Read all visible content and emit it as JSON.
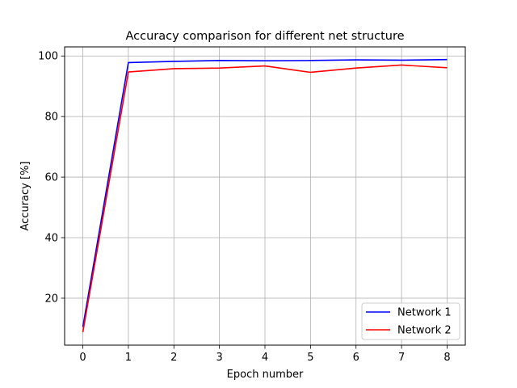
{
  "chart_data": {
    "type": "line",
    "title": "Accuracy comparison for different net structure",
    "xlabel": "Epoch number",
    "ylabel": "Accuracy [%]",
    "xlim": [
      -0.4,
      8.4
    ],
    "ylim": [
      4.5,
      103
    ],
    "xticks": [
      0,
      1,
      2,
      3,
      4,
      5,
      6,
      7,
      8
    ],
    "yticks": [
      20,
      40,
      60,
      80,
      100
    ],
    "grid": true,
    "legend_position": "lower-right",
    "x": [
      0,
      1,
      2,
      3,
      4,
      5,
      6,
      7,
      8
    ],
    "series": [
      {
        "name": "Network 1",
        "color": "#0000ff",
        "values": [
          10.5,
          97.8,
          98.2,
          98.5,
          98.4,
          98.5,
          98.7,
          98.6,
          98.8
        ]
      },
      {
        "name": "Network 2",
        "color": "#ff0000",
        "values": [
          8.8,
          94.7,
          95.8,
          96.0,
          96.7,
          94.6,
          96.0,
          97.0,
          96.1
        ]
      }
    ]
  }
}
